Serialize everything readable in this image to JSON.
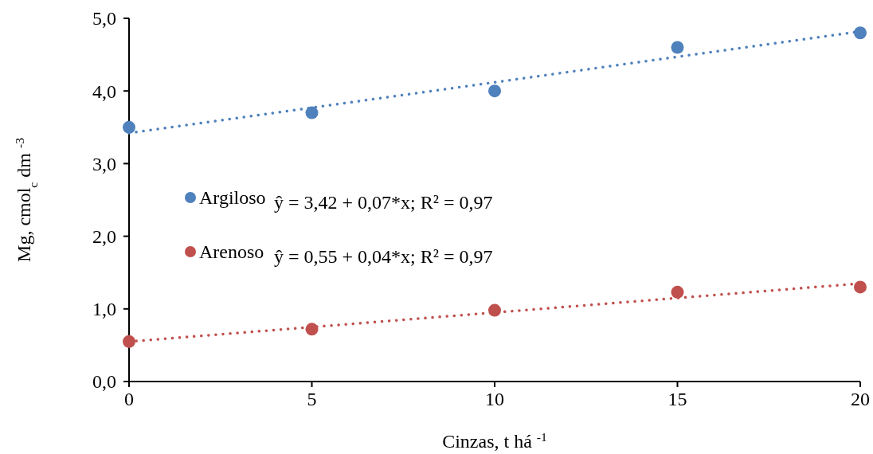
{
  "chart_data": {
    "type": "scatter",
    "xlabel": "Cinzas, t há $^{-1}$",
    "ylabel": "Mg, cmol$_{c}$ dm $^{-3}$",
    "xlim": [
      0,
      20
    ],
    "xticks": [
      0,
      5,
      10,
      15,
      20
    ],
    "ylim": [
      0,
      5
    ],
    "yticks": [
      {
        "value": 0,
        "label": "0,0"
      },
      {
        "value": 1,
        "label": "1,0"
      },
      {
        "value": 2,
        "label": "2,0"
      },
      {
        "value": 3,
        "label": "3,0"
      },
      {
        "value": 4,
        "label": "4,0"
      },
      {
        "value": 5,
        "label": "5,0"
      }
    ],
    "grid": false,
    "legend": "left",
    "x": [
      0,
      5,
      10,
      15,
      20
    ],
    "series": [
      {
        "name": "Argiloso",
        "color": "#4f81bd",
        "values": [
          3.5,
          3.7,
          4.0,
          4.6,
          4.8
        ],
        "marker": "circle"
      },
      {
        "name": "Arenoso",
        "color": "#c0504d",
        "values": [
          0.55,
          0.72,
          0.98,
          1.23,
          1.3
        ],
        "marker": "circle"
      },
      {
        "type": "line",
        "color": "#4f81bd",
        "values": [
          3.42,
          3.77,
          4.12,
          4.47,
          4.82
        ],
        "line_style": "dotted",
        "marker": "none"
      },
      {
        "type": "line",
        "color": "#c0504d",
        "values": [
          0.55,
          0.75,
          0.95,
          1.15,
          1.35
        ],
        "line_style": "dotted",
        "marker": "none"
      }
    ],
    "annotations": [
      "ŷ = 3,42 + 0,07*x; R² = 0,97",
      "ŷ  = 0,55 + 0,04*x; R² = 0,97"
    ]
  }
}
